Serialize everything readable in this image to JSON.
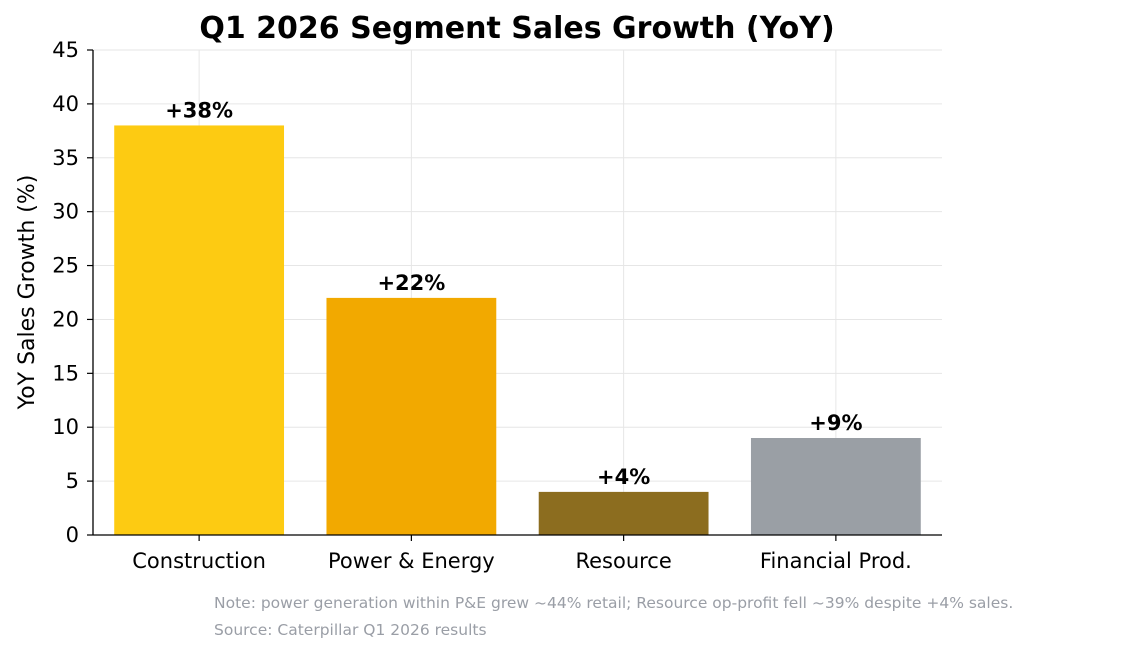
{
  "chart_data": {
    "type": "bar",
    "title": "Q1 2026 Segment Sales Growth (YoY)",
    "xlabel": "",
    "ylabel": "YoY Sales Growth (%)",
    "categories": [
      "Construction",
      "Power & Energy",
      "Resource",
      "Financial Prod."
    ],
    "values": [
      38,
      22,
      4,
      9
    ],
    "data_labels": [
      "+38%",
      "+22%",
      "+4%",
      "+9%"
    ],
    "colors": [
      "#FDCB12",
      "#F2A900",
      "#8C6D1F",
      "#9A9FA5"
    ],
    "ylim": [
      0,
      45
    ],
    "yticks": [
      "0",
      "5",
      "10",
      "15",
      "20",
      "25",
      "30",
      "35",
      "40",
      "45"
    ],
    "grid": true,
    "legend": "none"
  },
  "notes": {
    "note": "Note: power generation within P&E grew ~44% retail; Resource op-profit fell ~39% despite +4% sales.",
    "source": "Source: Caterpillar Q1 2026 results"
  }
}
